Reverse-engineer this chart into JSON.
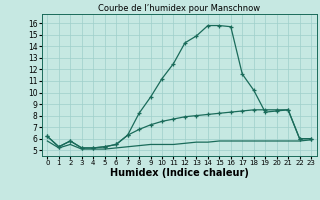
{
  "title": "Courbe de l’humidex pour Manschnow",
  "xlabel": "Humidex (Indice chaleur)",
  "xlim": [
    -0.5,
    23.5
  ],
  "ylim": [
    4.5,
    16.8
  ],
  "yticks": [
    5,
    6,
    7,
    8,
    9,
    10,
    11,
    12,
    13,
    14,
    15,
    16
  ],
  "xticks": [
    0,
    1,
    2,
    3,
    4,
    5,
    6,
    7,
    8,
    9,
    10,
    11,
    12,
    13,
    14,
    15,
    16,
    17,
    18,
    19,
    20,
    21,
    22,
    23
  ],
  "background_color": "#c6e8e2",
  "line_color": "#1a6b5a",
  "grid_color": "#9fcfca",
  "line1_x": [
    0,
    1,
    2,
    3,
    4,
    5,
    6,
    7,
    8,
    9,
    10,
    11,
    12,
    13,
    14,
    15,
    16,
    17,
    18,
    19,
    20,
    21,
    22,
    23
  ],
  "line1_y": [
    6.2,
    5.3,
    5.8,
    5.2,
    5.2,
    5.3,
    5.5,
    6.3,
    8.2,
    9.6,
    11.2,
    12.5,
    14.3,
    14.9,
    15.8,
    15.8,
    15.7,
    11.6,
    10.2,
    8.3,
    8.4,
    8.5,
    6.0,
    6.0
  ],
  "line2_x": [
    0,
    1,
    2,
    3,
    4,
    5,
    6,
    7,
    8,
    9,
    10,
    11,
    12,
    13,
    14,
    15,
    16,
    17,
    18,
    19,
    20,
    21,
    22,
    23
  ],
  "line2_y": [
    6.2,
    5.3,
    5.8,
    5.2,
    5.2,
    5.3,
    5.5,
    6.3,
    6.8,
    7.2,
    7.5,
    7.7,
    7.9,
    8.0,
    8.1,
    8.2,
    8.3,
    8.4,
    8.5,
    8.5,
    8.5,
    8.5,
    6.0,
    6.0
  ],
  "line3_x": [
    0,
    1,
    2,
    3,
    4,
    5,
    6,
    7,
    8,
    9,
    10,
    11,
    12,
    13,
    14,
    15,
    16,
    17,
    18,
    19,
    20,
    21,
    22,
    23
  ],
  "line3_y": [
    5.8,
    5.2,
    5.5,
    5.1,
    5.1,
    5.1,
    5.2,
    5.3,
    5.4,
    5.5,
    5.5,
    5.5,
    5.6,
    5.7,
    5.7,
    5.8,
    5.8,
    5.8,
    5.8,
    5.8,
    5.8,
    5.8,
    5.8,
    5.9
  ],
  "title_fontsize": 6.0,
  "xlabel_fontsize": 7.0,
  "tick_fontsize_x": 5.0,
  "tick_fontsize_y": 5.5
}
